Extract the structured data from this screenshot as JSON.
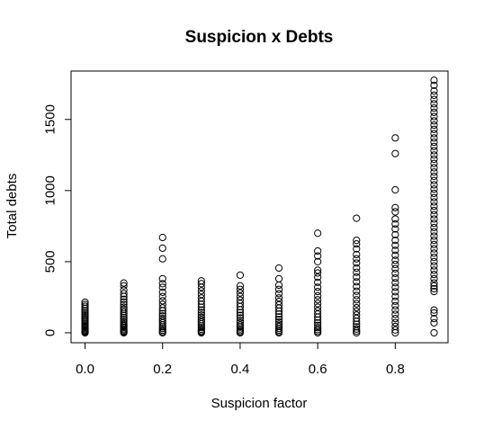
{
  "chart_data": {
    "type": "scatter",
    "title": "Suspicion x Debts",
    "xlabel": "Suspicion factor",
    "ylabel": "Total debts",
    "xlim": [
      -0.036,
      0.936
    ],
    "ylim": [
      -70,
      1840
    ],
    "x_ticks": [
      "0.0",
      "0.2",
      "0.4",
      "0.6",
      "0.8"
    ],
    "x_tick_values": [
      0.0,
      0.2,
      0.4,
      0.6,
      0.8
    ],
    "y_ticks": [
      "0",
      "500",
      "1000",
      "1500"
    ],
    "y_tick_values": [
      0,
      500,
      1000,
      1500
    ],
    "grid": false,
    "legend": "none",
    "marker": "open-circle",
    "color": "#000000",
    "series": [
      {
        "points": [
          [
            0.0,
            0
          ],
          [
            0.0,
            5
          ],
          [
            0.0,
            10
          ],
          [
            0.0,
            15
          ],
          [
            0.0,
            22
          ],
          [
            0.0,
            30
          ],
          [
            0.0,
            38
          ],
          [
            0.0,
            46
          ],
          [
            0.0,
            55
          ],
          [
            0.0,
            64
          ],
          [
            0.0,
            74
          ],
          [
            0.0,
            85
          ],
          [
            0.0,
            96
          ],
          [
            0.0,
            108
          ],
          [
            0.0,
            120
          ],
          [
            0.0,
            132
          ],
          [
            0.0,
            145
          ],
          [
            0.0,
            158
          ],
          [
            0.0,
            172
          ],
          [
            0.0,
            186
          ],
          [
            0.0,
            200
          ],
          [
            0.0,
            215
          ],
          [
            0.1,
            0
          ],
          [
            0.1,
            6
          ],
          [
            0.1,
            12
          ],
          [
            0.1,
            20
          ],
          [
            0.1,
            28
          ],
          [
            0.1,
            38
          ],
          [
            0.1,
            48
          ],
          [
            0.1,
            58
          ],
          [
            0.1,
            70
          ],
          [
            0.1,
            82
          ],
          [
            0.1,
            95
          ],
          [
            0.1,
            108
          ],
          [
            0.1,
            122
          ],
          [
            0.1,
            136
          ],
          [
            0.1,
            150
          ],
          [
            0.1,
            165
          ],
          [
            0.1,
            180
          ],
          [
            0.1,
            198
          ],
          [
            0.1,
            216
          ],
          [
            0.1,
            235
          ],
          [
            0.1,
            255
          ],
          [
            0.1,
            275
          ],
          [
            0.1,
            300
          ],
          [
            0.1,
            330
          ],
          [
            0.1,
            350
          ],
          [
            0.2,
            0
          ],
          [
            0.2,
            8
          ],
          [
            0.2,
            18
          ],
          [
            0.2,
            30
          ],
          [
            0.2,
            42
          ],
          [
            0.2,
            55
          ],
          [
            0.2,
            70
          ],
          [
            0.2,
            85
          ],
          [
            0.2,
            100
          ],
          [
            0.2,
            118
          ],
          [
            0.2,
            135
          ],
          [
            0.2,
            155
          ],
          [
            0.2,
            175
          ],
          [
            0.2,
            200
          ],
          [
            0.2,
            225
          ],
          [
            0.2,
            255
          ],
          [
            0.2,
            285
          ],
          [
            0.2,
            320
          ],
          [
            0.2,
            345
          ],
          [
            0.2,
            380
          ],
          [
            0.2,
            520
          ],
          [
            0.2,
            595
          ],
          [
            0.2,
            670
          ],
          [
            0.3,
            0
          ],
          [
            0.3,
            6
          ],
          [
            0.3,
            14
          ],
          [
            0.3,
            24
          ],
          [
            0.3,
            36
          ],
          [
            0.3,
            48
          ],
          [
            0.3,
            62
          ],
          [
            0.3,
            76
          ],
          [
            0.3,
            92
          ],
          [
            0.3,
            108
          ],
          [
            0.3,
            125
          ],
          [
            0.3,
            142
          ],
          [
            0.3,
            160
          ],
          [
            0.3,
            180
          ],
          [
            0.3,
            200
          ],
          [
            0.3,
            222
          ],
          [
            0.3,
            245
          ],
          [
            0.3,
            270
          ],
          [
            0.3,
            295
          ],
          [
            0.3,
            320
          ],
          [
            0.3,
            345
          ],
          [
            0.3,
            365
          ],
          [
            0.4,
            0
          ],
          [
            0.4,
            7
          ],
          [
            0.4,
            16
          ],
          [
            0.4,
            27
          ],
          [
            0.4,
            40
          ],
          [
            0.4,
            54
          ],
          [
            0.4,
            70
          ],
          [
            0.4,
            86
          ],
          [
            0.4,
            104
          ],
          [
            0.4,
            122
          ],
          [
            0.4,
            142
          ],
          [
            0.4,
            162
          ],
          [
            0.4,
            184
          ],
          [
            0.4,
            206
          ],
          [
            0.4,
            230
          ],
          [
            0.4,
            255
          ],
          [
            0.4,
            280
          ],
          [
            0.4,
            305
          ],
          [
            0.4,
            330
          ],
          [
            0.4,
            405
          ],
          [
            0.5,
            0
          ],
          [
            0.5,
            8
          ],
          [
            0.5,
            18
          ],
          [
            0.5,
            30
          ],
          [
            0.5,
            44
          ],
          [
            0.5,
            60
          ],
          [
            0.5,
            76
          ],
          [
            0.5,
            94
          ],
          [
            0.5,
            112
          ],
          [
            0.5,
            132
          ],
          [
            0.5,
            152
          ],
          [
            0.5,
            174
          ],
          [
            0.5,
            196
          ],
          [
            0.5,
            220
          ],
          [
            0.5,
            245
          ],
          [
            0.5,
            275
          ],
          [
            0.5,
            305
          ],
          [
            0.5,
            335
          ],
          [
            0.5,
            380
          ],
          [
            0.5,
            455
          ],
          [
            0.6,
            0
          ],
          [
            0.6,
            10
          ],
          [
            0.6,
            22
          ],
          [
            0.6,
            36
          ],
          [
            0.6,
            52
          ],
          [
            0.6,
            70
          ],
          [
            0.6,
            90
          ],
          [
            0.6,
            110
          ],
          [
            0.6,
            132
          ],
          [
            0.6,
            155
          ],
          [
            0.6,
            180
          ],
          [
            0.6,
            205
          ],
          [
            0.6,
            232
          ],
          [
            0.6,
            260
          ],
          [
            0.6,
            290
          ],
          [
            0.6,
            320
          ],
          [
            0.6,
            355
          ],
          [
            0.6,
            390
          ],
          [
            0.6,
            420
          ],
          [
            0.6,
            440
          ],
          [
            0.6,
            500
          ],
          [
            0.6,
            540
          ],
          [
            0.6,
            575
          ],
          [
            0.6,
            700
          ],
          [
            0.7,
            0
          ],
          [
            0.7,
            12
          ],
          [
            0.7,
            26
          ],
          [
            0.7,
            42
          ],
          [
            0.7,
            60
          ],
          [
            0.7,
            80
          ],
          [
            0.7,
            102
          ],
          [
            0.7,
            125
          ],
          [
            0.7,
            150
          ],
          [
            0.7,
            176
          ],
          [
            0.7,
            204
          ],
          [
            0.7,
            232
          ],
          [
            0.7,
            262
          ],
          [
            0.7,
            292
          ],
          [
            0.7,
            325
          ],
          [
            0.7,
            358
          ],
          [
            0.7,
            392
          ],
          [
            0.7,
            425
          ],
          [
            0.7,
            455
          ],
          [
            0.7,
            490
          ],
          [
            0.7,
            520
          ],
          [
            0.7,
            550
          ],
          [
            0.7,
            590
          ],
          [
            0.7,
            625
          ],
          [
            0.7,
            650
          ],
          [
            0.7,
            805
          ],
          [
            0.8,
            0
          ],
          [
            0.8,
            20
          ],
          [
            0.8,
            45
          ],
          [
            0.8,
            72
          ],
          [
            0.8,
            100
          ],
          [
            0.8,
            130
          ],
          [
            0.8,
            160
          ],
          [
            0.8,
            190
          ],
          [
            0.8,
            222
          ],
          [
            0.8,
            255
          ],
          [
            0.8,
            288
          ],
          [
            0.8,
            320
          ],
          [
            0.8,
            352
          ],
          [
            0.8,
            385
          ],
          [
            0.8,
            418
          ],
          [
            0.8,
            450
          ],
          [
            0.8,
            480
          ],
          [
            0.8,
            510
          ],
          [
            0.8,
            545
          ],
          [
            0.8,
            580
          ],
          [
            0.8,
            615
          ],
          [
            0.8,
            650
          ],
          [
            0.8,
            690
          ],
          [
            0.8,
            730
          ],
          [
            0.8,
            765
          ],
          [
            0.8,
            800
          ],
          [
            0.8,
            850
          ],
          [
            0.8,
            880
          ],
          [
            0.8,
            1005
          ],
          [
            0.8,
            1260
          ],
          [
            0.8,
            1370
          ],
          [
            0.9,
            0
          ],
          [
            0.9,
            70
          ],
          [
            0.9,
            100
          ],
          [
            0.9,
            140
          ],
          [
            0.9,
            160
          ],
          [
            0.9,
            290
          ],
          [
            0.9,
            310
          ],
          [
            0.9,
            330
          ],
          [
            0.9,
            350
          ],
          [
            0.9,
            380
          ],
          [
            0.9,
            410
          ],
          [
            0.9,
            440
          ],
          [
            0.9,
            470
          ],
          [
            0.9,
            500
          ],
          [
            0.9,
            530
          ],
          [
            0.9,
            560
          ],
          [
            0.9,
            590
          ],
          [
            0.9,
            620
          ],
          [
            0.9,
            650
          ],
          [
            0.9,
            680
          ],
          [
            0.9,
            710
          ],
          [
            0.9,
            740
          ],
          [
            0.9,
            770
          ],
          [
            0.9,
            800
          ],
          [
            0.9,
            830
          ],
          [
            0.9,
            860
          ],
          [
            0.9,
            890
          ],
          [
            0.9,
            920
          ],
          [
            0.9,
            950
          ],
          [
            0.9,
            980
          ],
          [
            0.9,
            1010
          ],
          [
            0.9,
            1040
          ],
          [
            0.9,
            1070
          ],
          [
            0.9,
            1100
          ],
          [
            0.9,
            1130
          ],
          [
            0.9,
            1160
          ],
          [
            0.9,
            1190
          ],
          [
            0.9,
            1220
          ],
          [
            0.9,
            1250
          ],
          [
            0.9,
            1280
          ],
          [
            0.9,
            1310
          ],
          [
            0.9,
            1340
          ],
          [
            0.9,
            1370
          ],
          [
            0.9,
            1400
          ],
          [
            0.9,
            1430
          ],
          [
            0.9,
            1460
          ],
          [
            0.9,
            1490
          ],
          [
            0.9,
            1520
          ],
          [
            0.9,
            1550
          ],
          [
            0.9,
            1580
          ],
          [
            0.9,
            1610
          ],
          [
            0.9,
            1640
          ],
          [
            0.9,
            1670
          ],
          [
            0.9,
            1700
          ],
          [
            0.9,
            1740
          ],
          [
            0.9,
            1775
          ]
        ]
      }
    ]
  }
}
